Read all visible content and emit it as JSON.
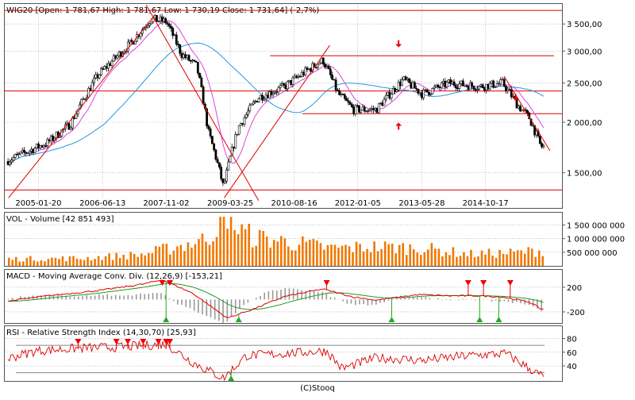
{
  "credit": "(C)Stooq",
  "chart_data": [
    {
      "type": "candlestick",
      "title": "WIG20 [Open: 1 781,67  High: 1 781,67  Low: 1 730,19  Close: 1 731,64] (-2,7%)",
      "x_tick_labels": [
        "2005-01-20",
        "2006-06-13",
        "2007-11-02",
        "2009-03-25",
        "2010-08-16",
        "2012-01-05",
        "2013-05-28",
        "2014-10-17"
      ],
      "y_tick_labels": [
        "1 500,00",
        "2 000,00",
        "2 500,00",
        "3 000,00",
        "3 500,00"
      ],
      "y_ticks": [
        1500,
        2000,
        2500,
        3000,
        3500
      ],
      "y_scale": "log",
      "ylim": [
        1250,
        3800
      ],
      "horizontal_levels": [
        3780,
        2920,
        2390,
        2100,
        1360
      ],
      "signal_arrows": [
        {
          "direction": "down",
          "color": "#ee0000"
        },
        {
          "direction": "up",
          "color": "#ee0000"
        },
        {
          "direction": "down",
          "color": "#ee0000"
        }
      ],
      "price_path": [
        {
          "date": "2004-05",
          "value": 1600
        },
        {
          "date": "2004-10",
          "value": 1680
        },
        {
          "date": "2005-04",
          "value": 1780
        },
        {
          "date": "2005-10",
          "value": 1980
        },
        {
          "date": "2006-05",
          "value": 2600
        },
        {
          "date": "2006-08",
          "value": 2780
        },
        {
          "date": "2007-02",
          "value": 3150
        },
        {
          "date": "2007-07",
          "value": 3600
        },
        {
          "date": "2007-11",
          "value": 3550
        },
        {
          "date": "2008-03",
          "value": 2950
        },
        {
          "date": "2008-07",
          "value": 2750
        },
        {
          "date": "2008-10",
          "value": 1900
        },
        {
          "date": "2009-02",
          "value": 1380
        },
        {
          "date": "2009-06",
          "value": 1950
        },
        {
          "date": "2009-11",
          "value": 2300
        },
        {
          "date": "2010-06",
          "value": 2450
        },
        {
          "date": "2011-04",
          "value": 2850
        },
        {
          "date": "2011-08",
          "value": 2350
        },
        {
          "date": "2011-12",
          "value": 2150
        },
        {
          "date": "2012-06",
          "value": 2150
        },
        {
          "date": "2013-01",
          "value": 2550
        },
        {
          "date": "2013-06",
          "value": 2350
        },
        {
          "date": "2014-01",
          "value": 2500
        },
        {
          "date": "2014-09",
          "value": 2450
        },
        {
          "date": "2015-03",
          "value": 2500
        },
        {
          "date": "2015-07",
          "value": 2200
        },
        {
          "date": "2015-10",
          "value": 2050
        },
        {
          "date": "2016-01",
          "value": 1740
        }
      ],
      "series": [
        {
          "color": "#dd44dd",
          "kind": "moving-average"
        },
        {
          "color": "#2299dd",
          "kind": "moving-average"
        }
      ],
      "colors": {
        "grid": "#999999",
        "levels": "#dd0000",
        "trend": "#dd0000",
        "candle_up": "#ffffff",
        "candle_down": "#000000"
      }
    },
    {
      "type": "bar",
      "title": "VOL - Volume [42 851 493]",
      "y_tick_labels": [
        "1 500 000 000",
        "1 000 000 000",
        "500 000 000"
      ],
      "y_ticks": [
        1500000000,
        1000000000,
        500000000
      ],
      "ylim": [
        0,
        1950000000
      ],
      "bar_color": "#f07800",
      "approx_profile": [
        {
          "date": "2004-05",
          "value": 250000000
        },
        {
          "date": "2006-01",
          "value": 280000000
        },
        {
          "date": "2007-05",
          "value": 420000000
        },
        {
          "date": "2008-03",
          "value": 750000000
        },
        {
          "date": "2008-09",
          "value": 950000000
        },
        {
          "date": "2009-02",
          "value": 1550000000
        },
        {
          "date": "2009-10",
          "value": 1050000000
        },
        {
          "date": "2010-06",
          "value": 900000000
        },
        {
          "date": "2011-06",
          "value": 650000000
        },
        {
          "date": "2012-06",
          "value": 700000000
        },
        {
          "date": "2013-06",
          "value": 650000000
        },
        {
          "date": "2014-06",
          "value": 430000000
        },
        {
          "date": "2015-06",
          "value": 480000000
        },
        {
          "date": "2016-01",
          "value": 560000000
        }
      ]
    },
    {
      "type": "line",
      "title": "MACD - Moving Average Conv. Div. (12,26,9) [-153,21]",
      "y_tick_labels": [
        "200",
        "-200"
      ],
      "y_ticks": [
        200,
        -200
      ],
      "ylim": [
        -380,
        480
      ],
      "series": [
        {
          "kind": "macd",
          "color": "#dd0000"
        },
        {
          "kind": "signal",
          "color": "#229922"
        },
        {
          "kind": "histogram",
          "color": "#999999"
        }
      ],
      "macd_path": [
        {
          "date": "2004-05",
          "value": -30
        },
        {
          "date": "2005-04",
          "value": 60
        },
        {
          "date": "2006-06",
          "value": 150
        },
        {
          "date": "2007-05",
          "value": 250
        },
        {
          "date": "2007-10",
          "value": 320
        },
        {
          "date": "2008-06",
          "value": 100
        },
        {
          "date": "2009-03",
          "value": -300
        },
        {
          "date": "2009-10",
          "value": -150
        },
        {
          "date": "2010-06",
          "value": 50
        },
        {
          "date": "2011-04",
          "value": 170
        },
        {
          "date": "2011-12",
          "value": 40
        },
        {
          "date": "2012-06",
          "value": -10
        },
        {
          "date": "2013-05",
          "value": 80
        },
        {
          "date": "2014-01",
          "value": 60
        },
        {
          "date": "2014-09",
          "value": 60
        },
        {
          "date": "2015-03",
          "value": 40
        },
        {
          "date": "2015-10",
          "value": -40
        },
        {
          "date": "2016-01",
          "value": -153
        }
      ],
      "sell_signals": [
        "2007-10",
        "2007-12",
        "2011-05",
        "2014-06",
        "2014-10",
        "2015-05"
      ],
      "buy_signals": [
        "2007-11",
        "2009-06",
        "2012-10",
        "2014-09",
        "2015-02"
      ],
      "colors": {
        "sell": "#ee0000",
        "buy": "#22aa22"
      }
    },
    {
      "type": "line",
      "title": "RSI - Relative Strength Index (14,30,70) [25,93]",
      "y_tick_labels": [
        "80",
        "60",
        "40"
      ],
      "y_ticks": [
        80,
        60,
        40
      ],
      "ylim": [
        18,
        98
      ],
      "reference_levels": [
        70,
        30
      ],
      "line_color": "#dd0000",
      "rsi_path": [
        {
          "date": "2004-05",
          "value": 50
        },
        {
          "date": "2005-01",
          "value": 62
        },
        {
          "date": "2006-01",
          "value": 66
        },
        {
          "date": "2007-01",
          "value": 68
        },
        {
          "date": "2007-11",
          "value": 72
        },
        {
          "date": "2008-06",
          "value": 45
        },
        {
          "date": "2009-02",
          "value": 22
        },
        {
          "date": "2009-08",
          "value": 55
        },
        {
          "date": "2010-06",
          "value": 58
        },
        {
          "date": "2011-05",
          "value": 62
        },
        {
          "date": "2011-09",
          "value": 36
        },
        {
          "date": "2012-06",
          "value": 52
        },
        {
          "date": "2013-06",
          "value": 48
        },
        {
          "date": "2014-06",
          "value": 55
        },
        {
          "date": "2015-04",
          "value": 58
        },
        {
          "date": "2015-10",
          "value": 36
        },
        {
          "date": "2016-01",
          "value": 26
        }
      ],
      "sell_signals": [
        "2005-12",
        "2006-10",
        "2007-01",
        "2007-05",
        "2007-09",
        "2007-11",
        "2007-12"
      ],
      "buy_signals": [
        "2009-04"
      ],
      "colors": {
        "sell": "#ee0000",
        "buy": "#22aa22"
      }
    }
  ]
}
